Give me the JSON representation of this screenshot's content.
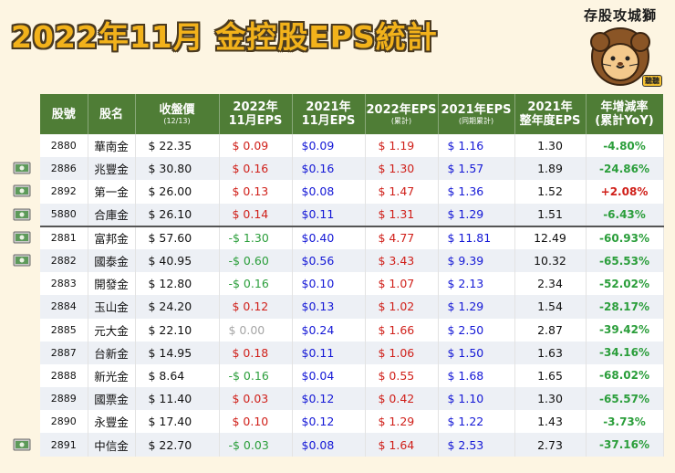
{
  "title": "2022年11月 金控股EPS統計",
  "brand": {
    "name": "存股攻城獅",
    "tag": "聽聽"
  },
  "headers": [
    {
      "main": "股號",
      "sub": ""
    },
    {
      "main": "股名",
      "sub": ""
    },
    {
      "main": "收盤價",
      "sub": "(12/13)"
    },
    {
      "main": "2022年\n11月EPS",
      "sub": ""
    },
    {
      "main": "2021年\n11月EPS",
      "sub": ""
    },
    {
      "main": "2022年EPS",
      "sub": "(累計)"
    },
    {
      "main": "2021年EPS",
      "sub": "(同期累計)"
    },
    {
      "main": "2021年\n整年度EPS",
      "sub": ""
    },
    {
      "main": "年增減率\n(累計YoY)",
      "sub": ""
    }
  ],
  "rows": [
    {
      "code": "2880",
      "name": "華南金",
      "price": "$ 22.35",
      "eps22m": "$ 0.09",
      "eps21m": "$0.09",
      "eps22c": "$ 1.19",
      "eps21c": "$ 1.16",
      "eps21y": "1.30",
      "yoy": "-4.80%",
      "eps22m_color": "red",
      "yoy_sign": "neg",
      "icon": false
    },
    {
      "code": "2886",
      "name": "兆豐金",
      "price": "$ 30.80",
      "eps22m": "$ 0.16",
      "eps21m": "$0.16",
      "eps22c": "$ 1.30",
      "eps21c": "$ 1.57",
      "eps21y": "1.89",
      "yoy": "-24.86%",
      "eps22m_color": "red",
      "yoy_sign": "neg",
      "icon": true
    },
    {
      "code": "2892",
      "name": "第一金",
      "price": "$ 26.00",
      "eps22m": "$ 0.13",
      "eps21m": "$0.08",
      "eps22c": "$ 1.47",
      "eps21c": "$ 1.36",
      "eps21y": "1.52",
      "yoy": "+2.08%",
      "eps22m_color": "red",
      "yoy_sign": "pos",
      "icon": true
    },
    {
      "code": "5880",
      "name": "合庫金",
      "price": "$ 26.10",
      "eps22m": "$ 0.14",
      "eps21m": "$0.11",
      "eps22c": "$ 1.31",
      "eps21c": "$ 1.29",
      "eps21y": "1.51",
      "yoy": "-6.43%",
      "eps22m_color": "red",
      "yoy_sign": "neg",
      "icon": true
    },
    {
      "code": "2881",
      "name": "富邦金",
      "price": "$ 57.60",
      "eps22m": "-$ 1.30",
      "eps21m": "$0.40",
      "eps22c": "$ 4.77",
      "eps21c": "$ 11.81",
      "eps21y": "12.49",
      "yoy": "-60.93%",
      "eps22m_color": "green",
      "yoy_sign": "neg",
      "icon": true,
      "group_start": true
    },
    {
      "code": "2882",
      "name": "國泰金",
      "price": "$ 40.95",
      "eps22m": "-$ 0.60",
      "eps21m": "$0.56",
      "eps22c": "$ 3.43",
      "eps21c": "$ 9.39",
      "eps21y": "10.32",
      "yoy": "-65.53%",
      "eps22m_color": "green",
      "yoy_sign": "neg",
      "icon": true
    },
    {
      "code": "2883",
      "name": "開發金",
      "price": "$ 12.80",
      "eps22m": "-$ 0.16",
      "eps21m": "$0.10",
      "eps22c": "$ 1.07",
      "eps21c": "$ 2.13",
      "eps21y": "2.34",
      "yoy": "-52.02%",
      "eps22m_color": "green",
      "yoy_sign": "neg",
      "icon": false
    },
    {
      "code": "2884",
      "name": "玉山金",
      "price": "$ 24.20",
      "eps22m": "$ 0.12",
      "eps21m": "$0.13",
      "eps22c": "$ 1.02",
      "eps21c": "$ 1.29",
      "eps21y": "1.54",
      "yoy": "-28.17%",
      "eps22m_color": "red",
      "yoy_sign": "neg",
      "icon": false
    },
    {
      "code": "2885",
      "name": "元大金",
      "price": "$ 22.10",
      "eps22m": "$ 0.00",
      "eps21m": "$0.24",
      "eps22c": "$ 1.66",
      "eps21c": "$ 2.50",
      "eps21y": "2.87",
      "yoy": "-39.42%",
      "eps22m_color": "gray",
      "yoy_sign": "neg",
      "icon": false
    },
    {
      "code": "2887",
      "name": "台新金",
      "price": "$ 14.95",
      "eps22m": "$ 0.18",
      "eps21m": "$0.11",
      "eps22c": "$ 1.06",
      "eps21c": "$ 1.50",
      "eps21y": "1.63",
      "yoy": "-34.16%",
      "eps22m_color": "red",
      "yoy_sign": "neg",
      "icon": false
    },
    {
      "code": "2888",
      "name": "新光金",
      "price": "$ 8.64",
      "eps22m": "-$ 0.16",
      "eps21m": "$0.04",
      "eps22c": "$ 0.55",
      "eps21c": "$ 1.68",
      "eps21y": "1.65",
      "yoy": "-68.02%",
      "eps22m_color": "green",
      "yoy_sign": "neg",
      "icon": false
    },
    {
      "code": "2889",
      "name": "國票金",
      "price": "$ 11.40",
      "eps22m": "$ 0.03",
      "eps21m": "$0.12",
      "eps22c": "$ 0.42",
      "eps21c": "$ 1.10",
      "eps21y": "1.30",
      "yoy": "-65.57%",
      "eps22m_color": "red",
      "yoy_sign": "neg",
      "icon": false
    },
    {
      "code": "2890",
      "name": "永豐金",
      "price": "$ 17.40",
      "eps22m": "$ 0.10",
      "eps21m": "$0.12",
      "eps22c": "$ 1.29",
      "eps21c": "$ 1.22",
      "eps21y": "1.43",
      "yoy": "-3.73%",
      "eps22m_color": "red",
      "yoy_sign": "neg",
      "icon": false
    },
    {
      "code": "2891",
      "name": "中信金",
      "price": "$ 22.70",
      "eps22m": "-$ 0.03",
      "eps21m": "$0.08",
      "eps22c": "$ 1.64",
      "eps21c": "$ 2.53",
      "eps21y": "2.73",
      "yoy": "-37.16%",
      "eps22m_color": "green",
      "yoy_sign": "neg",
      "icon": true
    }
  ],
  "colors": {
    "header_bg": "#4f7d36",
    "title": "#f2b21b",
    "neg": "#2b9e3b",
    "pos": "#d0201a",
    "blue": "#1418d6"
  }
}
